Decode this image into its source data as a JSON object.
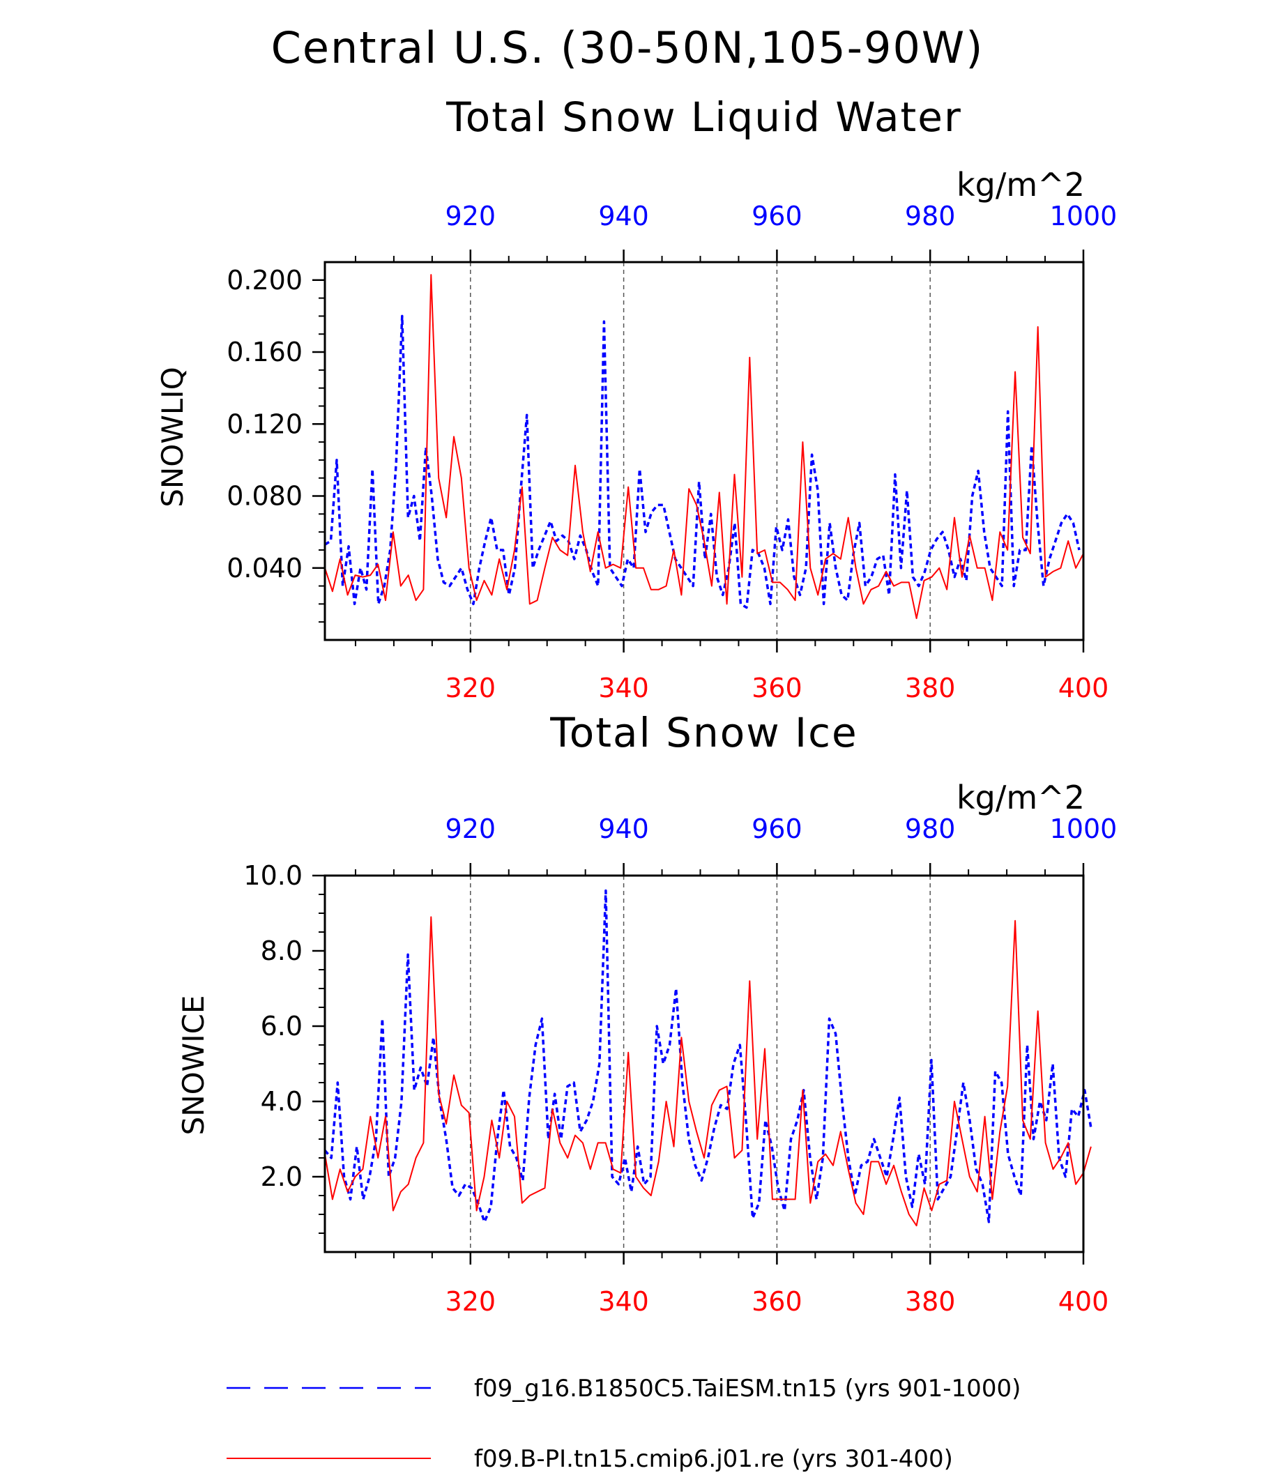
{
  "title": "Central U.S. (30-50N,105-90W)",
  "colors": {
    "blue": "#0000ff",
    "red": "#ff0000",
    "axis": "#000000",
    "grid": "#555555"
  },
  "chart_data": [
    {
      "type": "line",
      "subtitle": "Total Snow Liquid Water",
      "units": "kg/m^2",
      "ylabel": "SNOWLIQ",
      "ylim": [
        0.0,
        0.21
      ],
      "yticks": [
        0.04,
        0.08,
        0.12,
        0.16,
        0.2
      ],
      "yticklabels": [
        "0.040",
        "0.080",
        "0.120",
        "0.160",
        "0.200"
      ],
      "y_minor_step": 0.01,
      "xlim_bottom": [
        301,
        400
      ],
      "xticks_bottom": [
        "320",
        "340",
        "360",
        "380",
        "400"
      ],
      "xlim_top": [
        901,
        1000
      ],
      "xticks_top": [
        "920",
        "940",
        "960",
        "980",
        "1000"
      ],
      "series": [
        {
          "name": "f09_g16.B1850C5.TaiESM.tn15 (yrs 901-1000)",
          "color": "#0000ff",
          "style": "dashed",
          "axis": "top",
          "x_start": 901,
          "values": [
            0.053,
            0.055,
            0.1,
            0.03,
            0.052,
            0.02,
            0.04,
            0.028,
            0.095,
            0.02,
            0.03,
            0.05,
            0.098,
            0.18,
            0.068,
            0.08,
            0.055,
            0.107,
            0.08,
            0.045,
            0.032,
            0.03,
            0.035,
            0.04,
            0.028,
            0.02,
            0.04,
            0.055,
            0.068,
            0.05,
            0.05,
            0.025,
            0.04,
            0.084,
            0.125,
            0.04,
            0.05,
            0.058,
            0.066,
            0.055,
            0.058,
            0.055,
            0.045,
            0.058,
            0.05,
            0.038,
            0.03,
            0.177,
            0.04,
            0.035,
            0.03,
            0.045,
            0.04,
            0.095,
            0.06,
            0.071,
            0.075,
            0.075,
            0.06,
            0.045,
            0.04,
            0.035,
            0.03,
            0.088,
            0.045,
            0.07,
            0.035,
            0.025,
            0.04,
            0.065,
            0.02,
            0.018,
            0.05,
            0.048,
            0.04,
            0.02,
            0.063,
            0.05,
            0.067,
            0.035,
            0.025,
            0.04,
            0.103,
            0.083,
            0.02,
            0.065,
            0.04,
            0.025,
            0.022,
            0.048,
            0.065,
            0.03,
            0.035,
            0.045,
            0.047,
            0.025,
            0.092,
            0.04,
            0.083,
            0.035,
            0.03,
            0.038,
            0.05,
            0.056,
            0.06,
            0.05,
            0.035,
            0.045,
            0.033,
            0.08,
            0.094,
            0.06,
            0.04,
            0.035,
            0.03,
            0.127,
            0.03,
            0.05,
            0.05,
            0.108,
            0.065,
            0.03,
            0.045,
            0.055,
            0.065,
            0.07,
            0.065,
            0.05
          ],
          "x_step": 0.7752
        },
        {
          "name": "f09.B-PI.tn15.cmip6.j01.re (yrs 301-400)",
          "color": "#ff0000",
          "style": "solid",
          "axis": "bottom",
          "x_start": 301,
          "values": [
            0.04,
            0.027,
            0.045,
            0.025,
            0.036,
            0.035,
            0.036,
            0.042,
            0.022,
            0.06,
            0.03,
            0.036,
            0.022,
            0.028,
            0.203,
            0.09,
            0.068,
            0.113,
            0.09,
            0.04,
            0.022,
            0.033,
            0.025,
            0.045,
            0.028,
            0.05,
            0.085,
            0.02,
            0.022,
            0.04,
            0.057,
            0.05,
            0.047,
            0.097,
            0.06,
            0.038,
            0.06,
            0.04,
            0.042,
            0.04,
            0.085,
            0.04,
            0.04,
            0.028,
            0.028,
            0.03,
            0.05,
            0.025,
            0.084,
            0.075,
            0.055,
            0.03,
            0.082,
            0.02,
            0.092,
            0.035,
            0.157,
            0.048,
            0.05,
            0.032,
            0.032,
            0.028,
            0.022,
            0.11,
            0.04,
            0.025,
            0.045,
            0.048,
            0.045,
            0.068,
            0.04,
            0.02,
            0.028,
            0.03,
            0.038,
            0.03,
            0.032,
            0.032,
            0.012,
            0.033,
            0.035,
            0.04,
            0.028,
            0.068,
            0.035,
            0.058,
            0.04,
            0.04,
            0.022,
            0.06,
            0.05,
            0.149,
            0.057,
            0.048,
            0.174,
            0.035,
            0.038,
            0.04,
            0.055,
            0.04,
            0.048
          ],
          "x_step": 0.99
        }
      ]
    },
    {
      "type": "line",
      "subtitle": "Total Snow Ice",
      "units": "kg/m^2",
      "ylabel": "SNOWICE",
      "ylim": [
        0.0,
        10.0
      ],
      "yticks": [
        2.0,
        4.0,
        6.0,
        8.0,
        10.0
      ],
      "yticklabels": [
        "2.0",
        "4.0",
        "6.0",
        "8.0",
        "10.0"
      ],
      "y_minor_step": 0.5,
      "xlim_bottom": [
        301,
        400
      ],
      "xticks_bottom": [
        "320",
        "340",
        "360",
        "380",
        "400"
      ],
      "xlim_top": [
        901,
        1000
      ],
      "xticks_top": [
        "920",
        "940",
        "960",
        "980",
        "1000"
      ],
      "series": [
        {
          "name": "f09_g16.B1850C5.TaiESM.tn15 (yrs 901-1000)",
          "color": "#0000ff",
          "style": "dashed",
          "axis": "top",
          "x_start": 901,
          "values": [
            2.7,
            2.5,
            4.5,
            2.0,
            1.4,
            2.8,
            1.4,
            2.0,
            3.0,
            6.2,
            2.0,
            2.5,
            4.0,
            7.9,
            4.3,
            4.9,
            4.4,
            5.7,
            4.0,
            3.0,
            1.7,
            1.5,
            1.8,
            1.7,
            1.3,
            0.8,
            1.2,
            3.0,
            4.3,
            2.8,
            2.5,
            1.9,
            4.1,
            5.5,
            6.2,
            3.0,
            4.2,
            3.0,
            4.4,
            4.5,
            3.2,
            3.5,
            4.0,
            5.0,
            9.6,
            2.0,
            1.8,
            2.5,
            1.6,
            2.8,
            1.8,
            2.0,
            6.0,
            5.0,
            5.5,
            7.0,
            4.5,
            3.0,
            2.3,
            1.9,
            2.5,
            3.3,
            3.9,
            3.8,
            5.0,
            5.5,
            3.4,
            0.9,
            1.3,
            3.5,
            2.8,
            1.7,
            1.1,
            3.0,
            3.5,
            4.3,
            2.5,
            1.4,
            2.5,
            6.2,
            5.8,
            4.0,
            2.5,
            1.5,
            2.3,
            2.4,
            3.0,
            2.5,
            2.0,
            3.0,
            4.1,
            2.0,
            1.2,
            2.6,
            1.8,
            5.1,
            1.4,
            1.7,
            2.0,
            3.2,
            4.5,
            3.5,
            2.2,
            1.8,
            0.8,
            4.8,
            4.5,
            2.6,
            2.0,
            1.5,
            5.5,
            3.0,
            4.0,
            3.5,
            5.0,
            2.5,
            2.0,
            3.8,
            3.6,
            4.3,
            3.3
          ],
          "x_step": 0.8333
        },
        {
          "name": "f09.B-PI.tn15.cmip6.j01.re (yrs 301-400)",
          "color": "#ff0000",
          "style": "solid",
          "axis": "bottom",
          "x_start": 301,
          "values": [
            2.6,
            1.4,
            2.2,
            1.6,
            2.0,
            2.2,
            3.6,
            2.5,
            3.6,
            1.1,
            1.6,
            1.8,
            2.5,
            2.9,
            8.9,
            4.2,
            3.4,
            4.7,
            3.9,
            3.7,
            1.1,
            2.0,
            3.5,
            2.5,
            4.0,
            3.6,
            1.3,
            1.5,
            1.6,
            1.7,
            3.8,
            2.9,
            2.5,
            3.1,
            2.9,
            2.2,
            2.9,
            2.9,
            2.2,
            2.1,
            5.3,
            2.0,
            1.7,
            1.5,
            2.4,
            4.0,
            2.8,
            5.7,
            4.0,
            3.2,
            2.5,
            3.9,
            4.3,
            4.4,
            2.5,
            2.7,
            7.2,
            3.0,
            5.4,
            1.4,
            1.4,
            1.4,
            1.4,
            4.3,
            1.3,
            2.4,
            2.6,
            2.3,
            3.2,
            2.2,
            1.3,
            1.0,
            2.4,
            2.4,
            1.8,
            2.3,
            1.6,
            1.0,
            0.7,
            1.7,
            1.1,
            1.8,
            1.9,
            4.0,
            3.0,
            2.0,
            1.6,
            3.6,
            1.4,
            3.2,
            4.4,
            8.8,
            3.5,
            3.0,
            6.4,
            2.9,
            2.2,
            2.5,
            2.9,
            1.8,
            2.1,
            2.8
          ],
          "x_step": 0.99
        }
      ]
    }
  ],
  "legend": [
    {
      "label": "f09_g16.B1850C5.TaiESM.tn15 (yrs 901-1000)",
      "color": "#0000ff",
      "style": "dashed"
    },
    {
      "label": "f09.B-PI.tn15.cmip6.j01.re (yrs 301-400)",
      "color": "#ff0000",
      "style": "solid"
    }
  ]
}
